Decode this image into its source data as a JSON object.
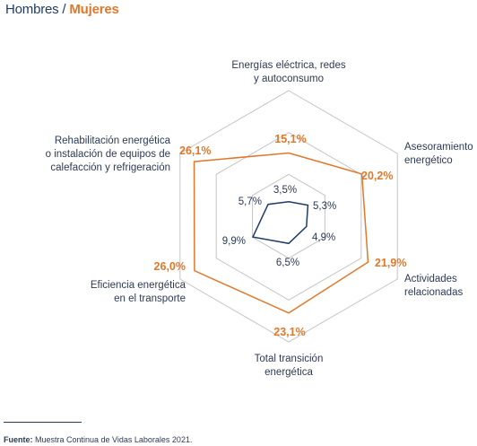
{
  "header": {
    "men_label": "Hombres",
    "separator": " / ",
    "women_label": "Mujeres"
  },
  "colors": {
    "men": "#1f3c68",
    "women": "#e0782b",
    "grid": "#c4c4c4"
  },
  "chart_data": {
    "type": "radar",
    "categories": [
      [
        "Energías eléctrica, redes",
        "y autoconsumo"
      ],
      [
        "Asesoramiento",
        "energético"
      ],
      [
        "Actividades",
        "relacionadas"
      ],
      [
        "Total transición",
        "energética"
      ],
      [
        "Eficiencia energética",
        "en el transporte"
      ],
      [
        "Rehabilitación energética",
        "o instalación de equipos de",
        "calefacción y refrigeración"
      ]
    ],
    "series": [
      {
        "name": "Hombres",
        "values": [
          3.5,
          5.3,
          4.9,
          6.5,
          9.9,
          5.7
        ],
        "labels": [
          "3,5%",
          "5,3%",
          "4,9%",
          "6,5%",
          "9,9%",
          "5,7%"
        ]
      },
      {
        "name": "Mujeres",
        "values": [
          15.1,
          20.2,
          21.9,
          23.1,
          26.0,
          26.1
        ],
        "labels": [
          "15,1%",
          "20,2%",
          "21,9%",
          "23,1%",
          "26,0%",
          "26,1%"
        ]
      }
    ],
    "rmax": 30,
    "grid_levels": [
      10,
      20,
      30
    ],
    "legend": "top-left"
  },
  "footer": {
    "source_label": "Fuente:",
    "source_text": " Muestra Continua de Vidas Laborales 2021."
  }
}
